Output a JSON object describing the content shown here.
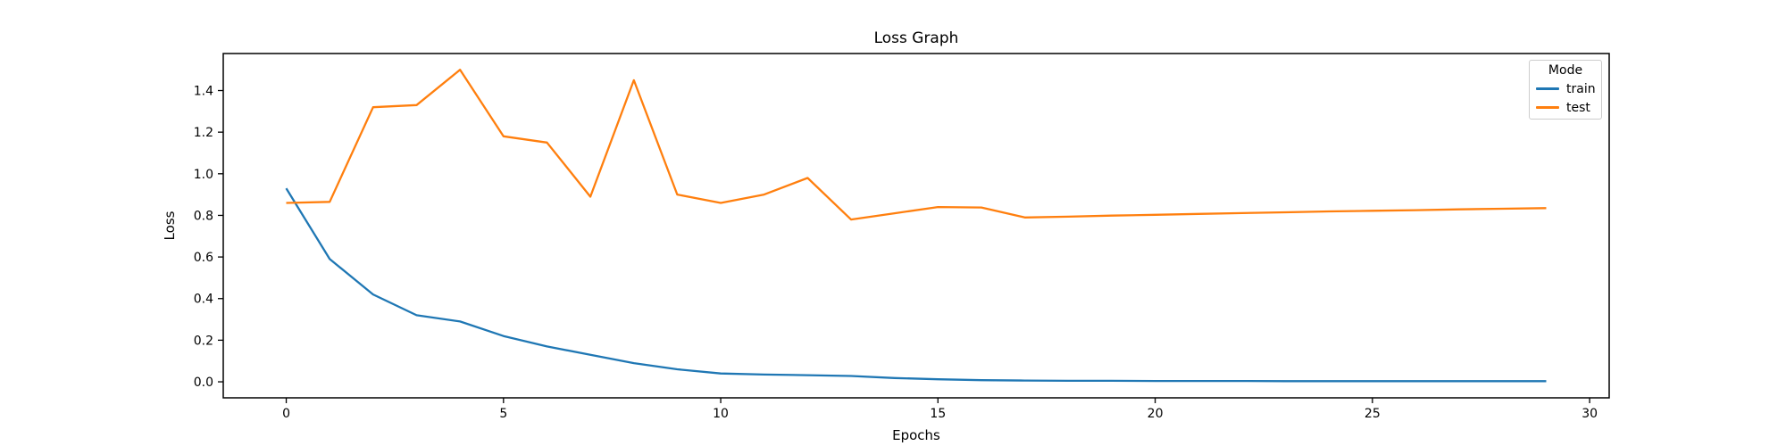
{
  "figure": {
    "background": "#ffffff",
    "text_color": "#000000",
    "spine_color": "#000000"
  },
  "chart_data": {
    "type": "line",
    "title": "Loss Graph",
    "xlabel": "Epochs",
    "ylabel": "Loss",
    "grid": false,
    "legend": {
      "title": "Mode",
      "position": "upper right",
      "entries": [
        "train",
        "test"
      ]
    },
    "x": [
      0,
      1,
      2,
      3,
      4,
      5,
      6,
      7,
      8,
      9,
      10,
      11,
      12,
      13,
      14,
      15,
      16,
      17,
      18,
      19,
      20,
      21,
      22,
      23,
      24,
      25,
      26,
      27,
      28,
      29
    ],
    "series": [
      {
        "name": "train",
        "color": "#1f77b4",
        "values": [
          0.93,
          0.59,
          0.42,
          0.32,
          0.29,
          0.22,
          0.17,
          0.13,
          0.09,
          0.06,
          0.04,
          0.035,
          0.032,
          0.028,
          0.018,
          0.012,
          0.008,
          0.006,
          0.005,
          0.005,
          0.004,
          0.004,
          0.004,
          0.003,
          0.003,
          0.003,
          0.003,
          0.003,
          0.003,
          0.003
        ]
      },
      {
        "name": "test",
        "color": "#ff7f0e",
        "values": [
          0.86,
          0.865,
          1.32,
          1.33,
          1.5,
          1.18,
          1.15,
          0.89,
          1.45,
          0.9,
          0.86,
          0.9,
          0.98,
          0.78,
          0.81,
          0.84,
          0.838,
          0.79,
          0.794,
          0.799,
          0.803,
          0.807,
          0.811,
          0.815,
          0.819,
          0.822,
          0.825,
          0.829,
          0.832,
          0.835
        ]
      }
    ],
    "xlim": [
      -1.45,
      30.45
    ],
    "ylim": [
      -0.077,
      1.578
    ],
    "x_ticks": [
      "0",
      "5",
      "10",
      "15",
      "20",
      "25",
      "30"
    ],
    "x_tick_values": [
      0,
      5,
      10,
      15,
      20,
      25,
      30
    ],
    "y_ticks": [
      "0.0",
      "0.2",
      "0.4",
      "0.6",
      "0.8",
      "1.0",
      "1.2",
      "1.4"
    ],
    "y_tick_values": [
      0.0,
      0.2,
      0.4,
      0.6,
      0.8,
      1.0,
      1.2,
      1.4
    ]
  }
}
